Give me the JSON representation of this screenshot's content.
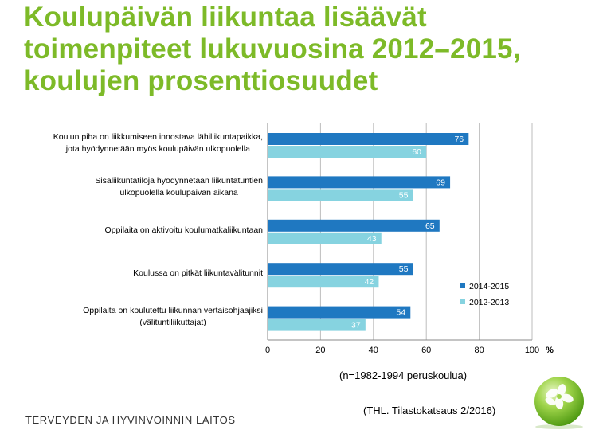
{
  "title_lines": [
    "Koulupäivän liikuntaa lisäävät",
    "toimenpiteet lukuvuosina 2012–2015,",
    "koulujen prosenttiosuudet"
  ],
  "chart_data": {
    "type": "bar",
    "orientation": "horizontal",
    "categories": [
      [
        "Koulun piha on liikkumiseen innostava lähiliikuntapaikka,",
        "jota hyödynnetään myös koulupäivän ulkopuolella"
      ],
      [
        "Sisäliikuntatiloja hyödynnetään liikuntatuntien",
        "ulkopuolella koulupäivän aikana"
      ],
      [
        "Oppilaita on aktivoitu koulumatkaliikuntaan"
      ],
      [
        "Koulussa on pitkät liikuntavälitunnit"
      ],
      [
        "Oppilaita on koulutettu liikunnan vertaisohjaajiksi",
        "(välituntiliikuttajat)"
      ]
    ],
    "series": [
      {
        "name": "2014-2015",
        "color": "#1f78c1",
        "values": [
          76,
          69,
          65,
          55,
          54
        ]
      },
      {
        "name": "2012-2013",
        "color": "#86d3e0",
        "values": [
          60,
          55,
          43,
          42,
          37
        ]
      }
    ],
    "xlim": [
      0,
      100
    ],
    "xticks": [
      "0",
      "20",
      "40",
      "60",
      "80",
      "100"
    ],
    "xunit": "%",
    "grid": true,
    "legend": "right"
  },
  "note_n": "(n=1982-1994 peruskoulua)",
  "source": "(THL. Tilastokatsaus 2/2016)",
  "footer": "TERVEYDEN JA HYVINVOINNIN LAITOS"
}
